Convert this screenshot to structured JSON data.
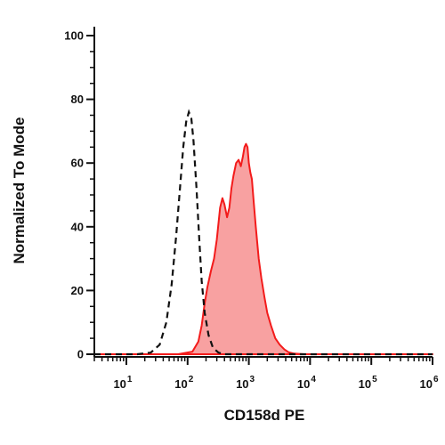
{
  "chart_data": {
    "type": "area",
    "xlabel": "CD158d PE",
    "ylabel": "Normalized To Mode",
    "x_scale": "log",
    "x_ticks": [
      {
        "base": "10",
        "exp": "1",
        "value": 10
      },
      {
        "base": "10",
        "exp": "2",
        "value": 100
      },
      {
        "base": "10",
        "exp": "3",
        "value": 1000
      },
      {
        "base": "10",
        "exp": "4",
        "value": 10000
      },
      {
        "base": "10",
        "exp": "5",
        "value": 100000
      },
      {
        "base": "10",
        "exp": "6",
        "value": 1000000
      }
    ],
    "y_ticks": [
      0,
      20,
      40,
      60,
      80,
      100
    ],
    "ylim": [
      0,
      100
    ],
    "grid": false,
    "series": [
      {
        "style": "filled",
        "color": "#f31b1b",
        "fill": "#f8a1a1",
        "points": [
          [
            3,
            0
          ],
          [
            70,
            0
          ],
          [
            120,
            0.8
          ],
          [
            150,
            4
          ],
          [
            170,
            9
          ],
          [
            190,
            16
          ],
          [
            210,
            21
          ],
          [
            240,
            26
          ],
          [
            270,
            30
          ],
          [
            300,
            36
          ],
          [
            340,
            46
          ],
          [
            370,
            49
          ],
          [
            400,
            47
          ],
          [
            440,
            43
          ],
          [
            480,
            46
          ],
          [
            520,
            52
          ],
          [
            560,
            56
          ],
          [
            620,
            60
          ],
          [
            680,
            61
          ],
          [
            740,
            59
          ],
          [
            800,
            62
          ],
          [
            850,
            65
          ],
          [
            900,
            66
          ],
          [
            950,
            65
          ],
          [
            1000,
            60
          ],
          [
            1060,
            57
          ],
          [
            1120,
            55
          ],
          [
            1200,
            48
          ],
          [
            1300,
            40
          ],
          [
            1450,
            30
          ],
          [
            1600,
            24
          ],
          [
            1800,
            18
          ],
          [
            2000,
            13
          ],
          [
            2300,
            9
          ],
          [
            2700,
            5
          ],
          [
            3200,
            3
          ],
          [
            3800,
            1.5
          ],
          [
            4500,
            0.6
          ],
          [
            5500,
            0.2
          ],
          [
            8000,
            0
          ],
          [
            1000000,
            0
          ]
        ]
      },
      {
        "style": "dashed",
        "color": "#111111",
        "points": [
          [
            3,
            0
          ],
          [
            15,
            0
          ],
          [
            25,
            0.5
          ],
          [
            35,
            3
          ],
          [
            45,
            10
          ],
          [
            55,
            22
          ],
          [
            65,
            37
          ],
          [
            75,
            52
          ],
          [
            85,
            65
          ],
          [
            95,
            73
          ],
          [
            105,
            76
          ],
          [
            115,
            74
          ],
          [
            125,
            67
          ],
          [
            140,
            52
          ],
          [
            155,
            36
          ],
          [
            170,
            23
          ],
          [
            190,
            13
          ],
          [
            220,
            6
          ],
          [
            260,
            2
          ],
          [
            320,
            0.5
          ],
          [
            400,
            0
          ],
          [
            1000000,
            0
          ]
        ]
      }
    ]
  }
}
